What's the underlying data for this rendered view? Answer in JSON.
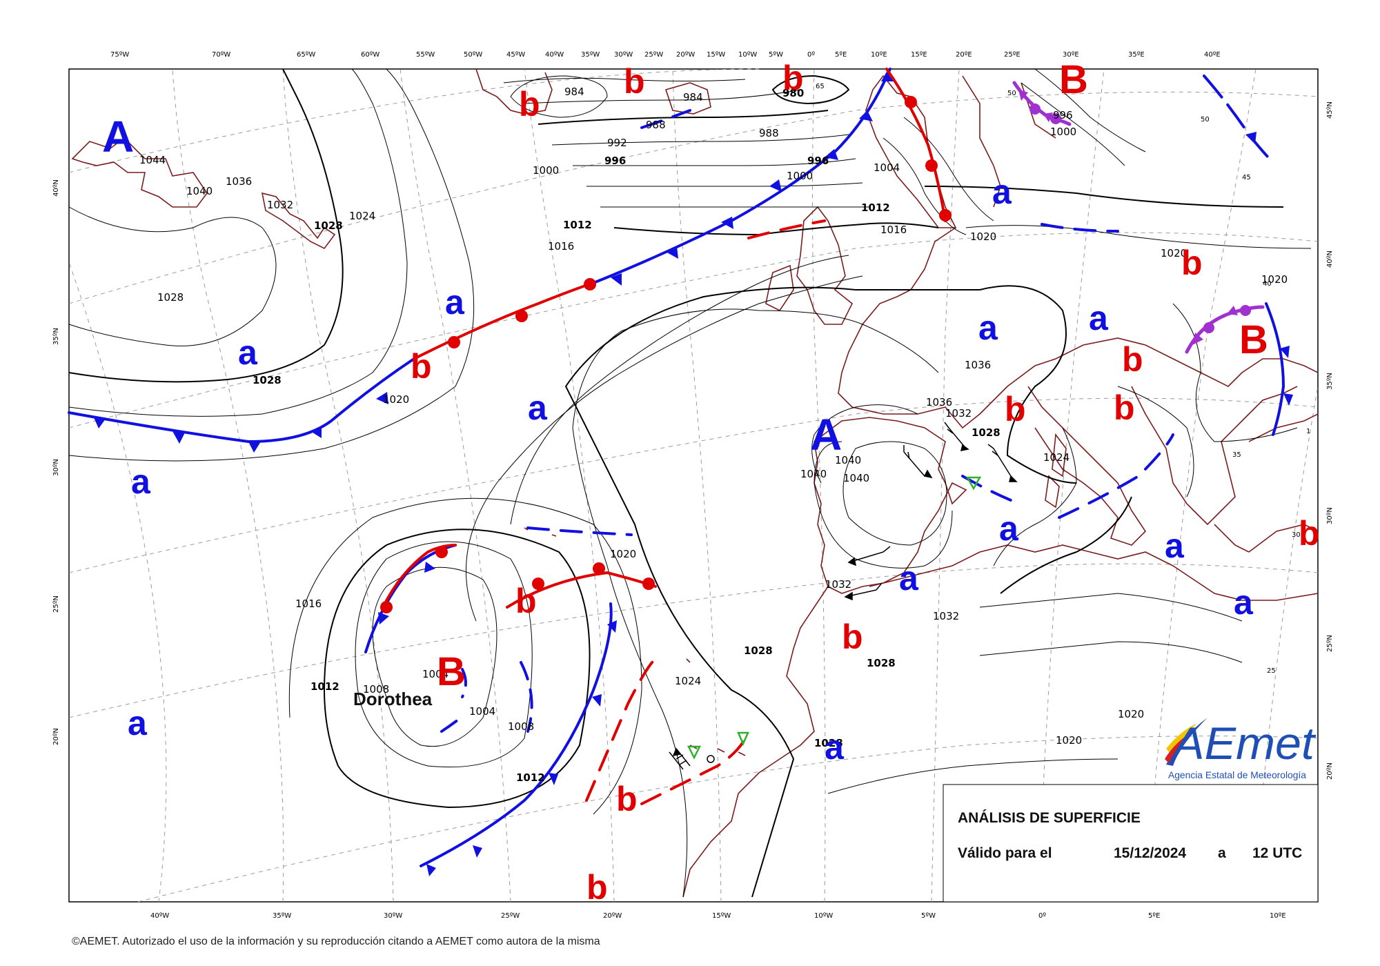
{
  "title": "ANÁLISIS DE SUPERFICIE",
  "valid_label": "Válido para el",
  "valid_date": "15/12/2024",
  "valid_at": "a",
  "valid_time": "12 UTC",
  "copyright": "©AEMET. Autorizado el uso de la información y su reproducción citando a AEMET como autora de la misma",
  "logo": {
    "mark": "AEmet",
    "name": "Agencia Estatal de Meteorología",
    "colors": [
      "#1f4fb4",
      "#f2c500",
      "#d62020"
    ]
  },
  "storm_name": "Dorothea",
  "top_longitudes": [
    "75ºW",
    "70ºW",
    "65ºW",
    "60ºW",
    "55ºW",
    "50ºW",
    "45ºW",
    "40ºW",
    "35ºW",
    "30ºW",
    "25ºW",
    "20ºW",
    "15ºW",
    "10ºW",
    "5ºW",
    "0º",
    "5ºE",
    "10ºE",
    "15ºE",
    "20ºE",
    "25ºE",
    "30ºE",
    "35ºE",
    "40ºE"
  ],
  "bottom_longitudes": [
    "40ºW",
    "35ºW",
    "30ºW",
    "25ºW",
    "20ºW",
    "15ºW",
    "10ºW",
    "5ºW",
    "0º",
    "5ºE",
    "10ºE"
  ],
  "left_latitudes": [
    "40ºN",
    "35ºN",
    "30ºN",
    "25ºN",
    "20ºN"
  ],
  "right_latitudes": [
    "45ºN",
    "40ºN",
    "35ºN",
    "30ºN",
    "25ºN",
    "20ºN"
  ],
  "isobar_labels": {
    "regular": [
      "1044",
      "1040",
      "1036",
      "1032",
      "1028",
      "1024",
      "1020",
      "1016",
      "1012",
      "1008",
      "1004",
      "1000",
      "996",
      "992",
      "988",
      "984",
      "980",
      "1040",
      "1040",
      "1040",
      "1036",
      "1036",
      "1032",
      "1032",
      "1024",
      "1020",
      "1020",
      "1020",
      "1016",
      "1016",
      "1008",
      "1004",
      "1008",
      "1024",
      "1000",
      "1004",
      "1008",
      "1016",
      "1020",
      "1036",
      "1032",
      "1024",
      "1020",
      "1032",
      "1028",
      "1020",
      "1020",
      "1008",
      "984",
      "988",
      "992",
      "1000",
      "1004",
      "996",
      "1000"
    ],
    "bold": [
      "1028",
      "1028",
      "1012",
      "996",
      "996",
      "980",
      "1012",
      "1028",
      "1028",
      "1012",
      "1012",
      "1028",
      "1028"
    ]
  },
  "grid_degree_labels": [
    "65",
    "50",
    "45",
    "40",
    "35",
    "30",
    "25",
    "50",
    "1"
  ],
  "centers": {
    "high_major": [
      "A",
      "A"
    ],
    "high_minor": [
      "a",
      "a",
      "a",
      "a",
      "a",
      "a",
      "a",
      "a",
      "a",
      "a",
      "a",
      "a",
      "a",
      "a"
    ],
    "low_major": [
      "B",
      "B",
      "B"
    ],
    "low_minor": [
      "b",
      "b",
      "b",
      "b",
      "b",
      "b",
      "b",
      "b",
      "b",
      "b",
      "b",
      "b",
      "b",
      "b"
    ]
  },
  "colors": {
    "cold_front": "#1010e0",
    "warm_front": "#e00000",
    "occluded_front": "#a030d0",
    "coast": "#7a1c1c",
    "isobar": "#000000",
    "grid": "#999999"
  }
}
